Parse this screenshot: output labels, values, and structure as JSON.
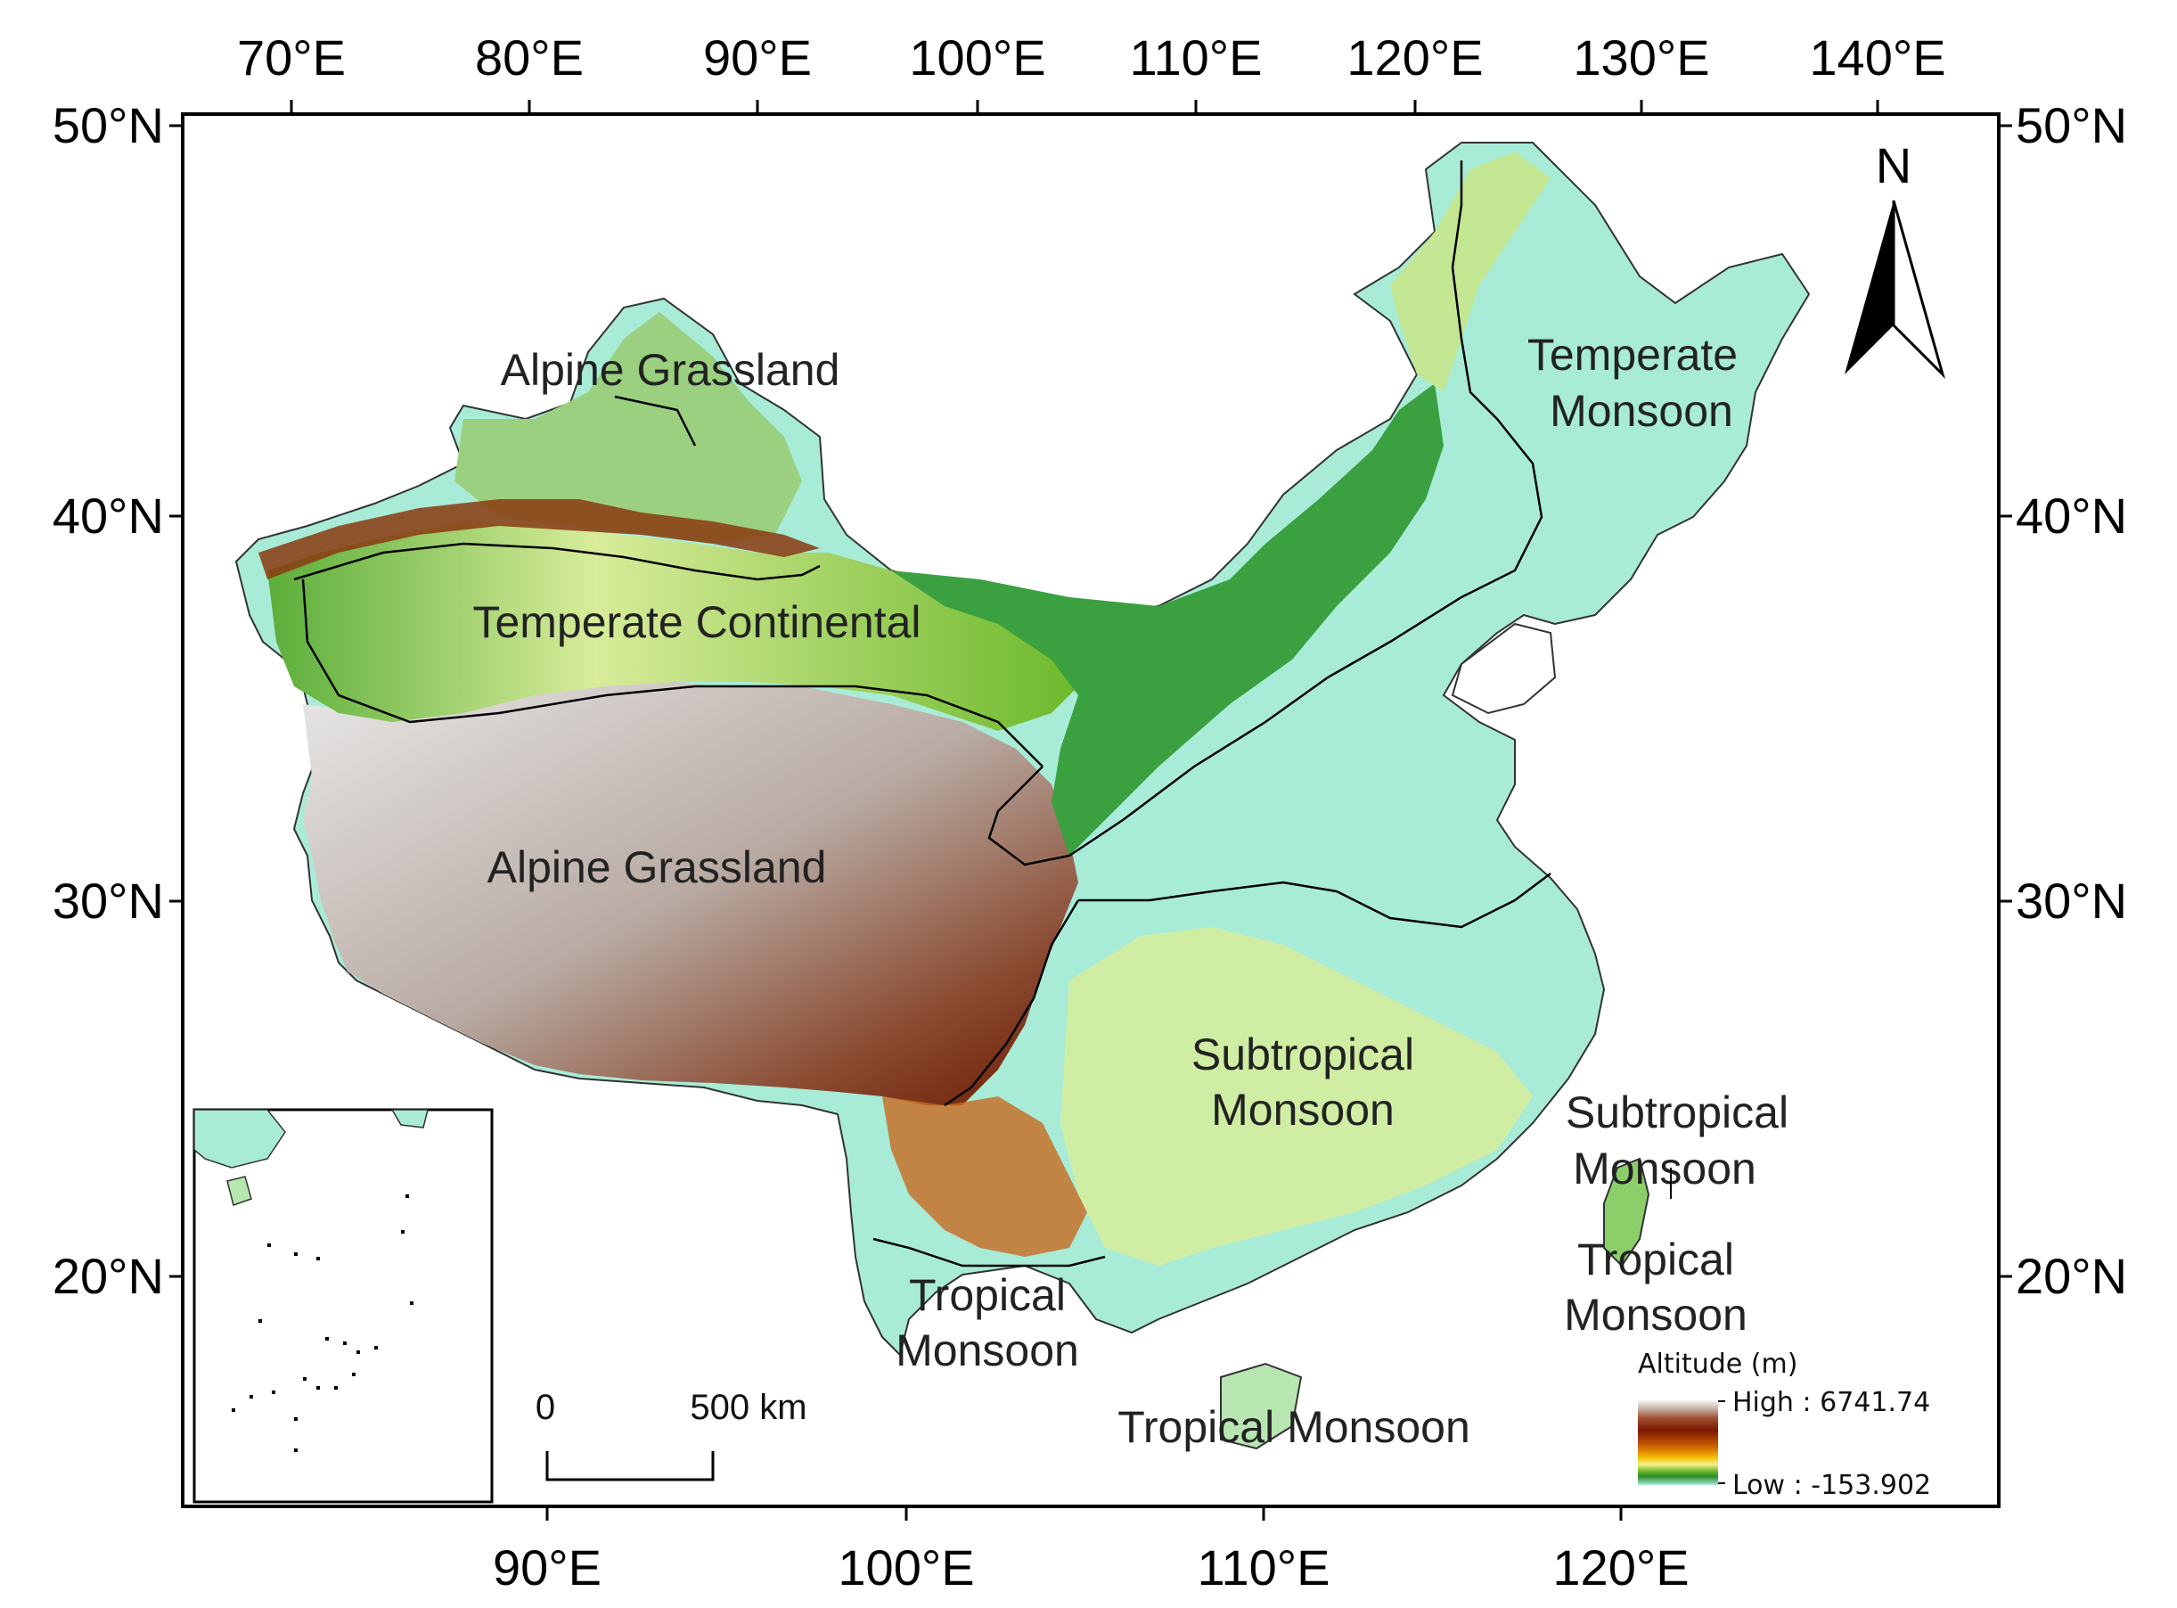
{
  "map": {
    "top_ticks": [
      "70°E",
      "80°E",
      "90°E",
      "100°E",
      "110°E",
      "120°E",
      "130°E",
      "140°E"
    ],
    "bottom_ticks": [
      "90°E",
      "100°E",
      "110°E",
      "120°E"
    ],
    "left_ticks": [
      "50°N",
      "40°N",
      "30°N",
      "20°N"
    ],
    "right_ticks": [
      "50°N",
      "40°N",
      "30°N",
      "20°N"
    ],
    "regions": [
      "Alpine Grassland",
      "Temperate Continental",
      "Alpine Grassland",
      "Temperate",
      "Monsoon",
      "Subtropical",
      "Monsoon",
      "Subtropical",
      "Monsoon",
      "Tropical",
      "Monsoon",
      "Tropical",
      "Monsoon",
      "Tropical Monsoon"
    ],
    "north_label": "N",
    "legend": {
      "title": "Altitude (m)",
      "high": "High : 6741.74",
      "low": "Low : -153.902",
      "colors": [
        "#ffffff",
        "#c8b8b0",
        "#a05030",
        "#7a1a00",
        "#b84a00",
        "#e08000",
        "#f0c000",
        "#f5f08a",
        "#6bb82a",
        "#2a8a2a",
        "#a8ecd8"
      ]
    },
    "scalebar": {
      "start": "0",
      "end": "500 km"
    }
  }
}
